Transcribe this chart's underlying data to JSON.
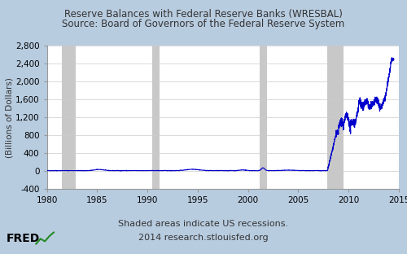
{
  "title_line1": "Reserve Balances with Federal Reserve Banks (WRESBAL)",
  "title_line2": "Source: Board of Governors of the Federal Reserve System",
  "ylabel": "(Billions of Dollars)",
  "xlim": [
    1980,
    2015
  ],
  "ylim": [
    -400,
    2800
  ],
  "yticks": [
    -400,
    0,
    400,
    800,
    1200,
    1600,
    2000,
    2400,
    2800
  ],
  "ytick_labels": [
    "-400",
    "0",
    "400",
    "800",
    "1,200",
    "1,600",
    "2,000",
    "2,400",
    "2,800"
  ],
  "xticks": [
    1980,
    1985,
    1990,
    1995,
    2000,
    2005,
    2010,
    2015
  ],
  "recession_bands": [
    [
      1981.5,
      1982.9
    ],
    [
      1990.5,
      1991.2
    ],
    [
      2001.2,
      2001.9
    ],
    [
      2007.9,
      2009.5
    ]
  ],
  "line_color": "#0000CC",
  "line_width": 0.8,
  "bg_color": "#B8CCE0",
  "plot_bg_color": "#FFFFFF",
  "recession_color": "#C8C8C8",
  "footer_text1": "Shaded areas indicate US recessions.",
  "footer_text2": "2014 research.stlouisfed.org",
  "footer_fontsize": 8,
  "title_fontsize": 8.5,
  "tick_fontsize": 7.5,
  "ylabel_fontsize": 7.5
}
